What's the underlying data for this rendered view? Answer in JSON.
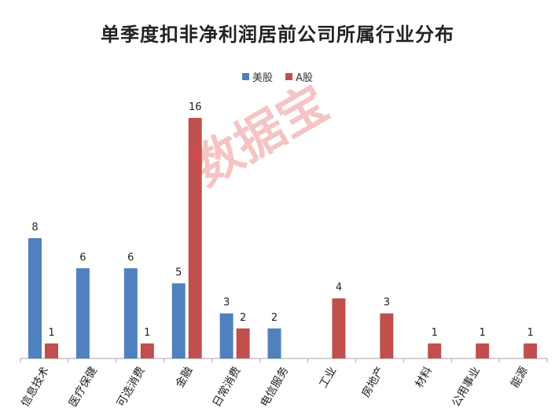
{
  "chart_data": {
    "type": "bar",
    "title": "单季度扣非净利润居前公司所属行业分布",
    "categories": [
      "信息技术",
      "医疗保健",
      "可选消费",
      "金融",
      "日常消费",
      "电信服务",
      "工业",
      "房地产",
      "材料",
      "公用事业",
      "能源"
    ],
    "series": [
      {
        "name": "美股",
        "color": "#4f81bd",
        "values": [
          8,
          6,
          6,
          5,
          3,
          2,
          0,
          0,
          0,
          0,
          0
        ]
      },
      {
        "name": "A股",
        "color": "#c0504d",
        "values": [
          1,
          0,
          1,
          16,
          2,
          0,
          4,
          3,
          1,
          1,
          1
        ]
      }
    ],
    "ylim": [
      0,
      16
    ],
    "grid": false,
    "legend_position": "top"
  },
  "watermark": "数据宝"
}
